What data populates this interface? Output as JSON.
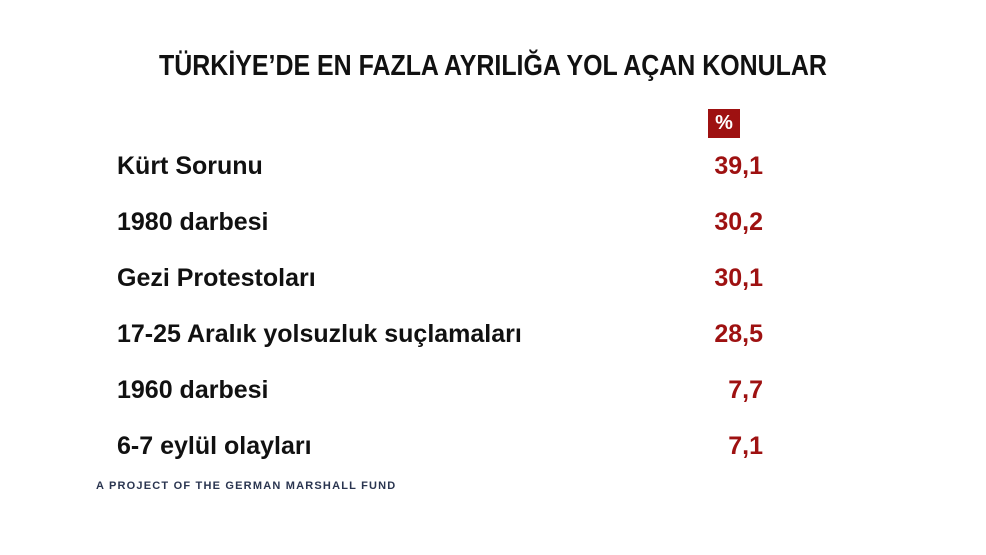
{
  "title": "TÜRKİYE’DE EN FAZLA AYRILIĞA YOL AÇAN KONULAR",
  "unit_badge": "%",
  "footer": "A PROJECT OF THE GERMAN MARSHALL FUND",
  "colors": {
    "accent": "#9e1111",
    "text": "#111111",
    "footer": "#2a3550",
    "background": "#ffffff"
  },
  "chart_data": {
    "type": "table",
    "title": "TÜRKİYE’DE EN FAZLA AYRILIĞA YOL AÇAN KONULAR",
    "value_header": "%",
    "categories": [
      "Kürt Sorunu",
      "1980 darbesi",
      "Gezi Protestoları",
      "17-25 Aralık yolsuzluk suçlamaları",
      "1960 darbesi",
      "6-7 eylül olayları"
    ],
    "values": [
      39.1,
      30.2,
      30.1,
      28.5,
      7.7,
      7.1
    ],
    "value_labels": [
      "39,1",
      "30,2",
      "30,1",
      "28,5",
      "7,7",
      "7,1"
    ]
  }
}
